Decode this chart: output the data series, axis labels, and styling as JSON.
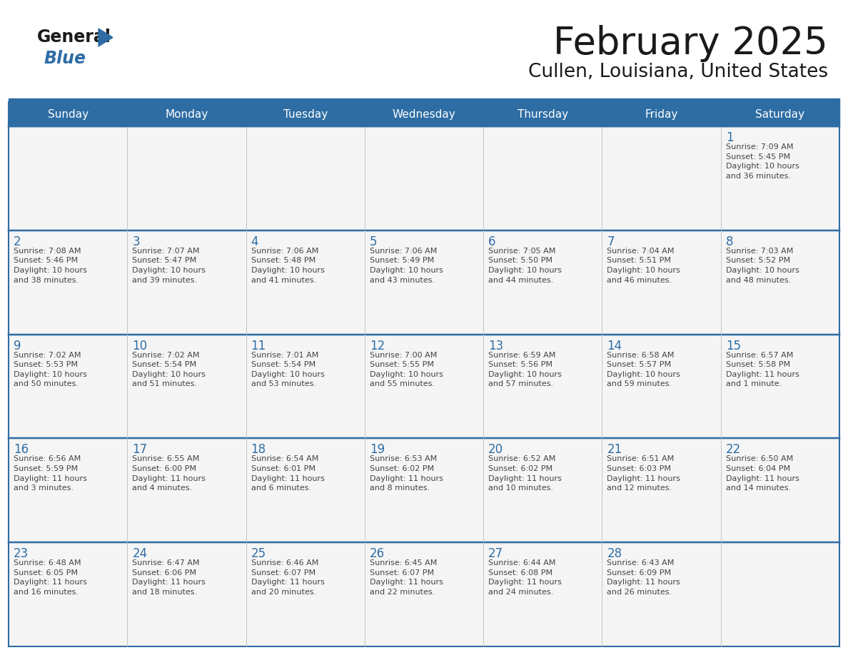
{
  "title": "February 2025",
  "subtitle": "Cullen, Louisiana, United States",
  "header_bg_color": "#2E6DA4",
  "header_text_color": "#FFFFFF",
  "cell_bg_color": "#F5F5F5",
  "border_color": "#2E6DA4",
  "text_color": "#444444",
  "day_num_color": "#2E6DA4",
  "days_of_week": [
    "Sunday",
    "Monday",
    "Tuesday",
    "Wednesday",
    "Thursday",
    "Friday",
    "Saturday"
  ],
  "calendar_data": [
    [
      {
        "day": "",
        "info": ""
      },
      {
        "day": "",
        "info": ""
      },
      {
        "day": "",
        "info": ""
      },
      {
        "day": "",
        "info": ""
      },
      {
        "day": "",
        "info": ""
      },
      {
        "day": "",
        "info": ""
      },
      {
        "day": "1",
        "info": "Sunrise: 7:09 AM\nSunset: 5:45 PM\nDaylight: 10 hours\nand 36 minutes."
      }
    ],
    [
      {
        "day": "2",
        "info": "Sunrise: 7:08 AM\nSunset: 5:46 PM\nDaylight: 10 hours\nand 38 minutes."
      },
      {
        "day": "3",
        "info": "Sunrise: 7:07 AM\nSunset: 5:47 PM\nDaylight: 10 hours\nand 39 minutes."
      },
      {
        "day": "4",
        "info": "Sunrise: 7:06 AM\nSunset: 5:48 PM\nDaylight: 10 hours\nand 41 minutes."
      },
      {
        "day": "5",
        "info": "Sunrise: 7:06 AM\nSunset: 5:49 PM\nDaylight: 10 hours\nand 43 minutes."
      },
      {
        "day": "6",
        "info": "Sunrise: 7:05 AM\nSunset: 5:50 PM\nDaylight: 10 hours\nand 44 minutes."
      },
      {
        "day": "7",
        "info": "Sunrise: 7:04 AM\nSunset: 5:51 PM\nDaylight: 10 hours\nand 46 minutes."
      },
      {
        "day": "8",
        "info": "Sunrise: 7:03 AM\nSunset: 5:52 PM\nDaylight: 10 hours\nand 48 minutes."
      }
    ],
    [
      {
        "day": "9",
        "info": "Sunrise: 7:02 AM\nSunset: 5:53 PM\nDaylight: 10 hours\nand 50 minutes."
      },
      {
        "day": "10",
        "info": "Sunrise: 7:02 AM\nSunset: 5:54 PM\nDaylight: 10 hours\nand 51 minutes."
      },
      {
        "day": "11",
        "info": "Sunrise: 7:01 AM\nSunset: 5:54 PM\nDaylight: 10 hours\nand 53 minutes."
      },
      {
        "day": "12",
        "info": "Sunrise: 7:00 AM\nSunset: 5:55 PM\nDaylight: 10 hours\nand 55 minutes."
      },
      {
        "day": "13",
        "info": "Sunrise: 6:59 AM\nSunset: 5:56 PM\nDaylight: 10 hours\nand 57 minutes."
      },
      {
        "day": "14",
        "info": "Sunrise: 6:58 AM\nSunset: 5:57 PM\nDaylight: 10 hours\nand 59 minutes."
      },
      {
        "day": "15",
        "info": "Sunrise: 6:57 AM\nSunset: 5:58 PM\nDaylight: 11 hours\nand 1 minute."
      }
    ],
    [
      {
        "day": "16",
        "info": "Sunrise: 6:56 AM\nSunset: 5:59 PM\nDaylight: 11 hours\nand 3 minutes."
      },
      {
        "day": "17",
        "info": "Sunrise: 6:55 AM\nSunset: 6:00 PM\nDaylight: 11 hours\nand 4 minutes."
      },
      {
        "day": "18",
        "info": "Sunrise: 6:54 AM\nSunset: 6:01 PM\nDaylight: 11 hours\nand 6 minutes."
      },
      {
        "day": "19",
        "info": "Sunrise: 6:53 AM\nSunset: 6:02 PM\nDaylight: 11 hours\nand 8 minutes."
      },
      {
        "day": "20",
        "info": "Sunrise: 6:52 AM\nSunset: 6:02 PM\nDaylight: 11 hours\nand 10 minutes."
      },
      {
        "day": "21",
        "info": "Sunrise: 6:51 AM\nSunset: 6:03 PM\nDaylight: 11 hours\nand 12 minutes."
      },
      {
        "day": "22",
        "info": "Sunrise: 6:50 AM\nSunset: 6:04 PM\nDaylight: 11 hours\nand 14 minutes."
      }
    ],
    [
      {
        "day": "23",
        "info": "Sunrise: 6:48 AM\nSunset: 6:05 PM\nDaylight: 11 hours\nand 16 minutes."
      },
      {
        "day": "24",
        "info": "Sunrise: 6:47 AM\nSunset: 6:06 PM\nDaylight: 11 hours\nand 18 minutes."
      },
      {
        "day": "25",
        "info": "Sunrise: 6:46 AM\nSunset: 6:07 PM\nDaylight: 11 hours\nand 20 minutes."
      },
      {
        "day": "26",
        "info": "Sunrise: 6:45 AM\nSunset: 6:07 PM\nDaylight: 11 hours\nand 22 minutes."
      },
      {
        "day": "27",
        "info": "Sunrise: 6:44 AM\nSunset: 6:08 PM\nDaylight: 11 hours\nand 24 minutes."
      },
      {
        "day": "28",
        "info": "Sunrise: 6:43 AM\nSunset: 6:09 PM\nDaylight: 11 hours\nand 26 minutes."
      },
      {
        "day": "",
        "info": ""
      }
    ]
  ],
  "fig_width": 11.88,
  "fig_height": 9.18,
  "dpi": 100
}
